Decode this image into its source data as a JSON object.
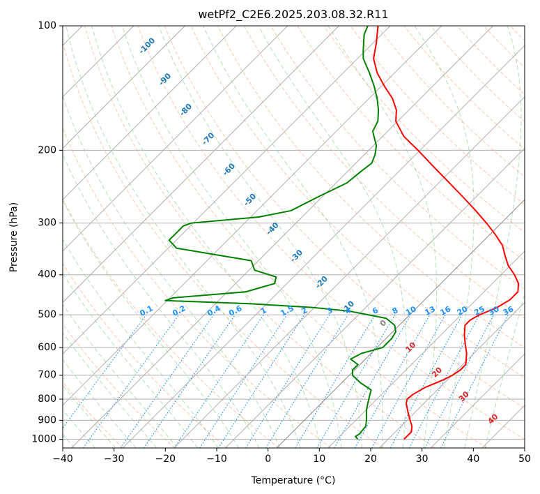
{
  "chart_data": {
    "type": "line",
    "subtype": "skew-t log-p diagram",
    "title": "wetPf2_C2E6.2025.203.08.32.R11",
    "xlabel": "Temperature (°C)",
    "ylabel": "Pressure (hPa)",
    "xlim": [
      -40,
      50
    ],
    "ylim": [
      1050,
      100
    ],
    "y_scale": "log",
    "grid": true,
    "x_ticks": [
      -40,
      -30,
      -20,
      -10,
      0,
      10,
      20,
      30,
      40,
      50
    ],
    "y_ticks": [
      100,
      200,
      300,
      400,
      500,
      600,
      700,
      800,
      900,
      1000
    ],
    "colors": {
      "temperature": "#ff0000",
      "dewpoint": "#008000",
      "isotherm_label": "#1f77b4",
      "mixing_ratio": "#1e90ff",
      "dry_adiabat": "#ff7f50",
      "moist_adiabat": "#2ca02c",
      "isotherm_0": "#808080",
      "isotherm_warm_label": "#d62728"
    },
    "series": [
      {
        "points": [
          {
            "p": 1000,
            "t": 26.5
          },
          {
            "p": 960,
            "t": 26.5
          },
          {
            "p": 930,
            "t": 25.5
          },
          {
            "p": 900,
            "t": 24.0
          },
          {
            "p": 860,
            "t": 22.0
          },
          {
            "p": 820,
            "t": 20.0
          },
          {
            "p": 800,
            "t": 19.3
          },
          {
            "p": 780,
            "t": 19.5
          },
          {
            "p": 750,
            "t": 20.5
          },
          {
            "p": 720,
            "t": 22.5
          },
          {
            "p": 700,
            "t": 23.5
          },
          {
            "p": 680,
            "t": 24.0
          },
          {
            "p": 660,
            "t": 24.0
          },
          {
            "p": 620,
            "t": 22.0
          },
          {
            "p": 590,
            "t": 20.0
          },
          {
            "p": 560,
            "t": 18.0
          },
          {
            "p": 530,
            "t": 16.2
          },
          {
            "p": 515,
            "t": 16.2
          },
          {
            "p": 500,
            "t": 17.0
          },
          {
            "p": 480,
            "t": 19.0
          },
          {
            "p": 460,
            "t": 20.0
          },
          {
            "p": 440,
            "t": 20.0
          },
          {
            "p": 420,
            "t": 18.5
          },
          {
            "p": 400,
            "t": 16.0
          },
          {
            "p": 380,
            "t": 13.0
          },
          {
            "p": 360,
            "t": 10.5
          },
          {
            "p": 340,
            "t": 8.0
          },
          {
            "p": 320,
            "t": 4.5
          },
          {
            "p": 300,
            "t": 0.5
          },
          {
            "p": 280,
            "t": -4.0
          },
          {
            "p": 260,
            "t": -9.0
          },
          {
            "p": 240,
            "t": -14.5
          },
          {
            "p": 220,
            "t": -20.5
          },
          {
            "p": 200,
            "t": -27.0
          },
          {
            "p": 185,
            "t": -32.5
          },
          {
            "p": 170,
            "t": -37.0
          },
          {
            "p": 160,
            "t": -39.0
          },
          {
            "p": 150,
            "t": -42.0
          },
          {
            "p": 140,
            "t": -46.0
          },
          {
            "p": 130,
            "t": -50.0
          },
          {
            "p": 120,
            "t": -53.5
          },
          {
            "p": 110,
            "t": -56.0
          },
          {
            "p": 100,
            "t": -59.0
          }
        ]
      },
      {
        "points": [
          {
            "p": 1000,
            "t": 17.5
          },
          {
            "p": 985,
            "t": 16.5
          },
          {
            "p": 970,
            "t": 16.8
          },
          {
            "p": 930,
            "t": 16.5
          },
          {
            "p": 900,
            "t": 15.5
          },
          {
            "p": 850,
            "t": 13.5
          },
          {
            "p": 820,
            "t": 12.5
          },
          {
            "p": 790,
            "t": 11.5
          },
          {
            "p": 760,
            "t": 10.5
          },
          {
            "p": 730,
            "t": 7.0
          },
          {
            "p": 700,
            "t": 4.0
          },
          {
            "p": 680,
            "t": 3.0
          },
          {
            "p": 660,
            "t": 3.0
          },
          {
            "p": 640,
            "t": 0.5
          },
          {
            "p": 620,
            "t": 1.5
          },
          {
            "p": 600,
            "t": 4.5
          },
          {
            "p": 570,
            "t": 4.5
          },
          {
            "p": 550,
            "t": 4.0
          },
          {
            "p": 530,
            "t": 2.5
          },
          {
            "p": 510,
            "t": -0.5
          },
          {
            "p": 490,
            "t": -9.0
          },
          {
            "p": 480,
            "t": -17.0
          },
          {
            "p": 470,
            "t": -30.0
          },
          {
            "p": 462,
            "t": -47.0
          },
          {
            "p": 455,
            "t": -46.0
          },
          {
            "p": 440,
            "t": -33.0
          },
          {
            "p": 420,
            "t": -29.0
          },
          {
            "p": 405,
            "t": -30.0
          },
          {
            "p": 390,
            "t": -35.5
          },
          {
            "p": 370,
            "t": -38.0
          },
          {
            "p": 345,
            "t": -55.0
          },
          {
            "p": 330,
            "t": -58.0
          },
          {
            "p": 305,
            "t": -58.0
          },
          {
            "p": 300,
            "t": -57.0
          },
          {
            "p": 290,
            "t": -45.0
          },
          {
            "p": 280,
            "t": -40.0
          },
          {
            "p": 260,
            "t": -37.5
          },
          {
            "p": 240,
            "t": -34.5
          },
          {
            "p": 225,
            "t": -34.0
          },
          {
            "p": 215,
            "t": -33.5
          },
          {
            "p": 205,
            "t": -34.5
          },
          {
            "p": 195,
            "t": -36.0
          },
          {
            "p": 180,
            "t": -39.5
          },
          {
            "p": 170,
            "t": -40.5
          },
          {
            "p": 160,
            "t": -42.5
          },
          {
            "p": 150,
            "t": -45.0
          },
          {
            "p": 140,
            "t": -48.0
          },
          {
            "p": 130,
            "t": -51.5
          },
          {
            "p": 120,
            "t": -55.5
          },
          {
            "p": 115,
            "t": -57.0
          },
          {
            "p": 105,
            "t": -60.0
          },
          {
            "p": 100,
            "t": -61.0
          }
        ]
      }
    ],
    "isotherm_labels": [
      "-100",
      "-90",
      "-80",
      "-70",
      "-60",
      "-50",
      "-40",
      "-30",
      "-20",
      "-10",
      "0",
      "10",
      "20",
      "30",
      "40"
    ],
    "mixing_ratio_labels": [
      "0.1",
      "0.2",
      "0.4",
      "0.6",
      "1",
      "1.5",
      "2",
      "3",
      "4",
      "6",
      "8",
      "10",
      "13",
      "16",
      "20",
      "25",
      "30",
      "36"
    ]
  }
}
